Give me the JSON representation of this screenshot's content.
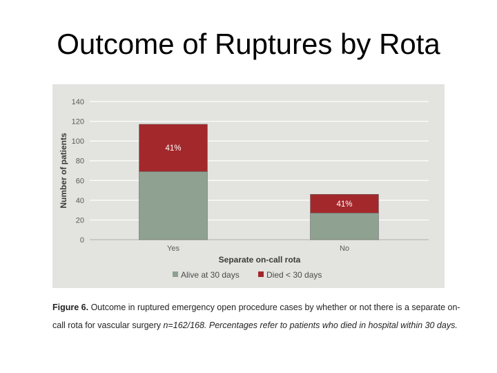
{
  "slide": {
    "title": "Outcome of Ruptures by Rota"
  },
  "caption": {
    "label": "Figure 6.",
    "text": " Outcome in ruptured emergency open procedure cases by whether or not there is a separate on-call rota for vascular surgery ",
    "italic": "n=162/168. Percentages refer to patients who died in hospital within 30 days."
  },
  "chart_data": {
    "type": "bar",
    "stacked": true,
    "categories": [
      "Yes",
      "No"
    ],
    "series": [
      {
        "name": "Alive at 30 days",
        "values": [
          69,
          27
        ],
        "color": "#8fa191"
      },
      {
        "name": "Died < 30 days",
        "values": [
          48,
          19
        ],
        "color": "#a3282b"
      }
    ],
    "data_labels": [
      "41%",
      "41%"
    ],
    "xlabel": "Separate on-call rota",
    "ylabel": "Number of patients",
    "ylim": [
      0,
      140
    ],
    "yticks": [
      0,
      20,
      40,
      60,
      80,
      100,
      120,
      140
    ],
    "grid": true,
    "legend_position": "bottom"
  }
}
